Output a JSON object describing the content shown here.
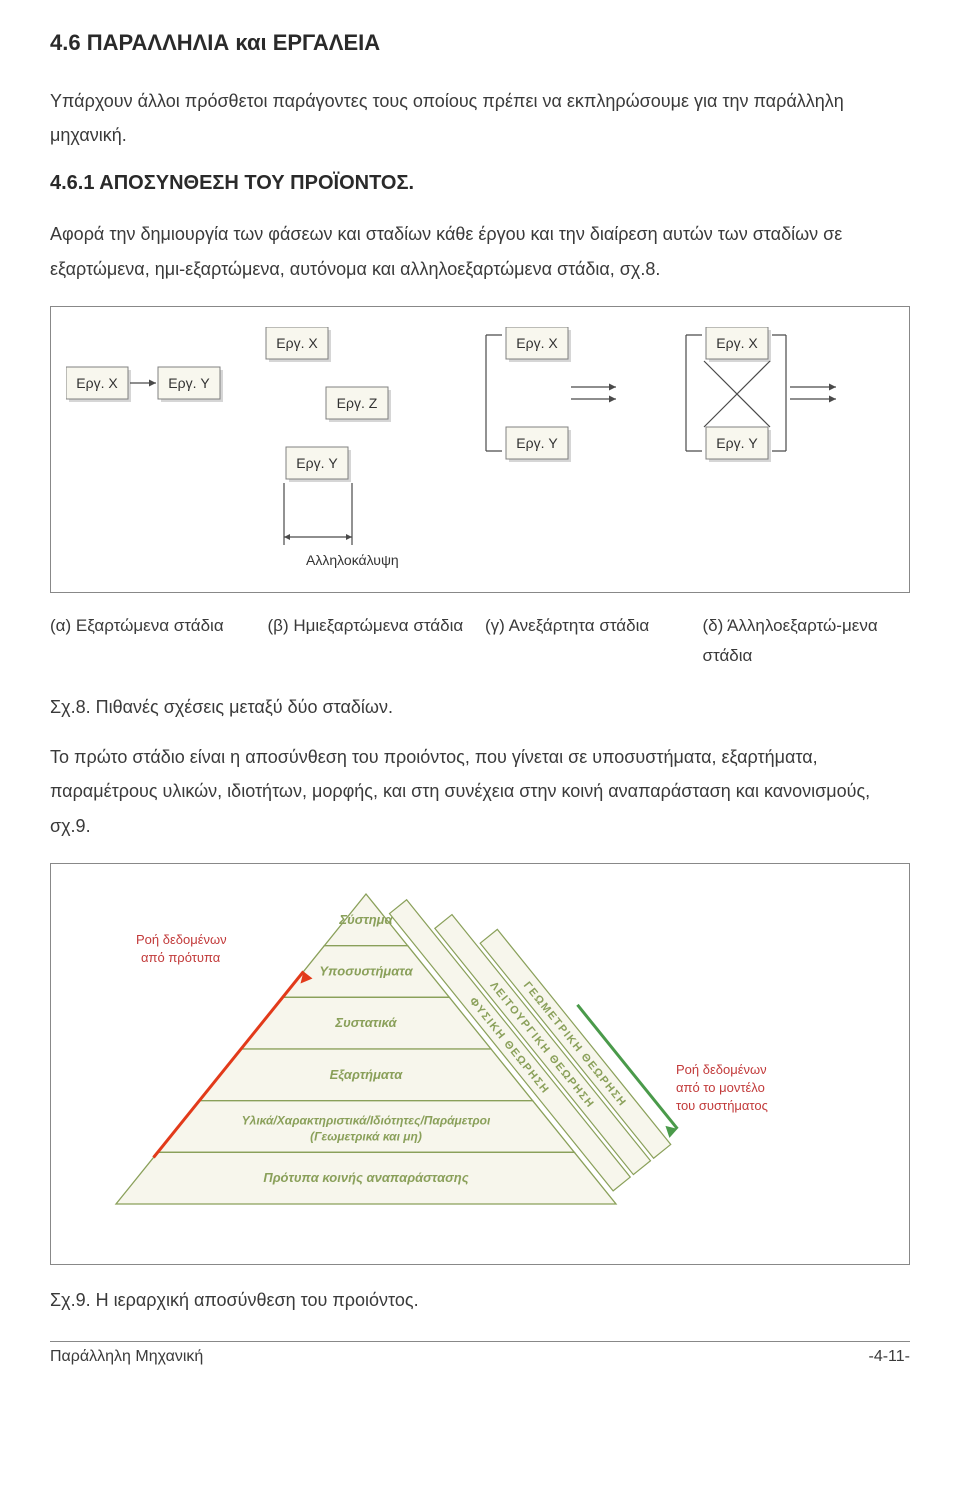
{
  "section_title": "4.6  ΠΑΡΑΛΛΗΛΙΑ και  ΕΡΓΑΛΕΙΑ",
  "intro_p": "Υπάρχουν άλλοι πρόσθετοι παράγοντες τους οποίους πρέπει να εκπληρώσουμε για την παράλληλη μηχανική.",
  "subsection_title": "4.6.1  ΑΠΟΣΥΝΘΕΣΗ ΤΟΥ ΠΡΟΪΟΝΤΟΣ.",
  "sub_p": "Αφορά την δημιουργία των φάσεων και σταδίων κάθε έργου και την διαίρεση αυτών των σταδίων σε εξαρτώμενα, ημι-εξαρτώμενα, αυτόνομα και αλληλοεξαρτώμενα στάδια, σχ.8.",
  "fig8": {
    "node_fill": "#f8f7ee",
    "node_stroke": "#808080",
    "node_stroke_width": 1,
    "shadow_fill": "#d6d6d6",
    "text_color": "#333333",
    "arrow_color": "#4a4a4a",
    "font_size": 14,
    "overlap_label": "Αλληλοκάλυψη",
    "labels": {
      "ergX": "Εργ. X",
      "ergY": "Εργ. Y",
      "ergZ": "Εργ. Z"
    },
    "captions": [
      "(α) Εξαρτώμενα στάδια",
      "(β) Ημιεξαρτώμενα στάδια",
      "(γ) Ανεξάρτητα στάδια",
      "(δ) Άλληλοεξαρτώ-μενα στάδια"
    ],
    "fig_label": "Σχ.8. Πιθανές σχέσεις μεταξύ δύο σταδίων."
  },
  "mid_p": "Το πρώτο στάδιο είναι η αποσύνθεση του προιόντος, που γίνεται σε υποσυστήματα, εξαρτήματα, παραμέτρους υλικών, ιδιοτήτων, μορφής, και στη συνέχεια στην κοινή αναπαράσταση και κανονισμούς, σχ.9.",
  "fig9": {
    "bg": "#ffffff",
    "pyramid_fill": "#f7f6ec",
    "pyramid_stroke": "#8aa05a",
    "text_color": "#8aa05a",
    "red_text": "#c23a3a",
    "red_arrow": "#e23a1a",
    "green_arrow": "#4a9a4a",
    "left_label1": "Ροή δεδομένων",
    "left_label2": "από πρότυπα",
    "right_label1": "Ροή δεδομένων",
    "right_label2": "από το μοντέλο",
    "right_label3": "του συστήματος",
    "levels": [
      "Σύστημα",
      "Υποσυστήματα",
      "Συστατικά",
      "Εξαρτήματα",
      "Υλικά/Χαρακτηριστικά/Ιδιότητες/Παράμετροι (Γεωμετρικά και μη)",
      "Πρότυπα κοινής αναπαράστασης"
    ],
    "diag_labels": [
      "ΦΥΣΙΚΗ ΘΕΩΡΗΣΗ",
      "ΛΕΙΤΟΥΡΓΙΚΗ ΘΕΩΡΗΣΗ",
      "ΓΕΩΜΕΤΡΙΚΗ ΘΕΩΡΗΣΗ"
    ],
    "fig_label": "Σχ.9. Η ιεραρχική αποσύνθεση του προιόντος."
  },
  "footer_left": "Παράλληλη Μηχανική",
  "footer_right": "-4-11-"
}
